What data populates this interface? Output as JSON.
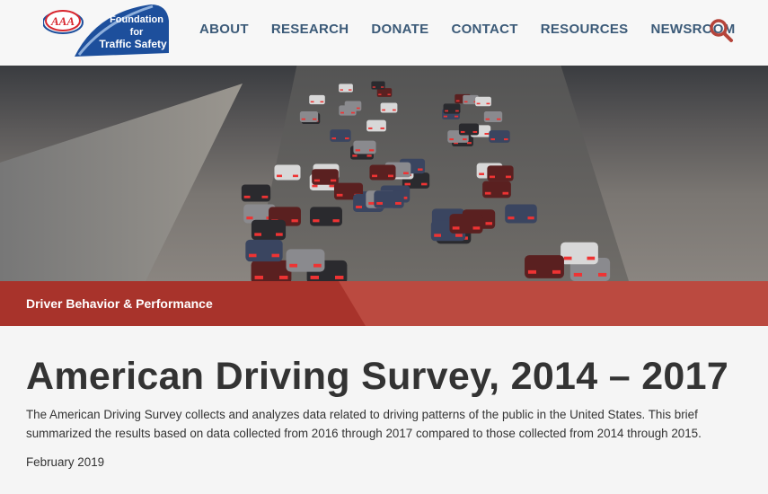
{
  "header": {
    "logo": {
      "text_aaa": "AAA",
      "text": "Foundation for Traffic Safety",
      "colors": {
        "blue": "#1d4f9c",
        "red": "#d8262e"
      }
    },
    "nav": [
      {
        "label": "ABOUT"
      },
      {
        "label": "RESEARCH"
      },
      {
        "label": "DONATE"
      },
      {
        "label": "CONTACT"
      },
      {
        "label": "RESOURCES"
      },
      {
        "label": "NEWSROOM"
      }
    ],
    "search_icon": "search-icon"
  },
  "hero": {
    "image": "highway-traffic-photo"
  },
  "banner": {
    "category": "Driver Behavior & Performance",
    "colors": {
      "dark": "#a8332b",
      "light": "#bb4a40"
    }
  },
  "article": {
    "title": "American Driving Survey, 2014 – 2017",
    "description": "The American Driving Survey collects and analyzes data related to driving patterns of the public in the United States. This brief summarized the results based on data collected from 2016 through 2017 compared to those collected from 2014 through 2015.",
    "date": "February 2019"
  }
}
